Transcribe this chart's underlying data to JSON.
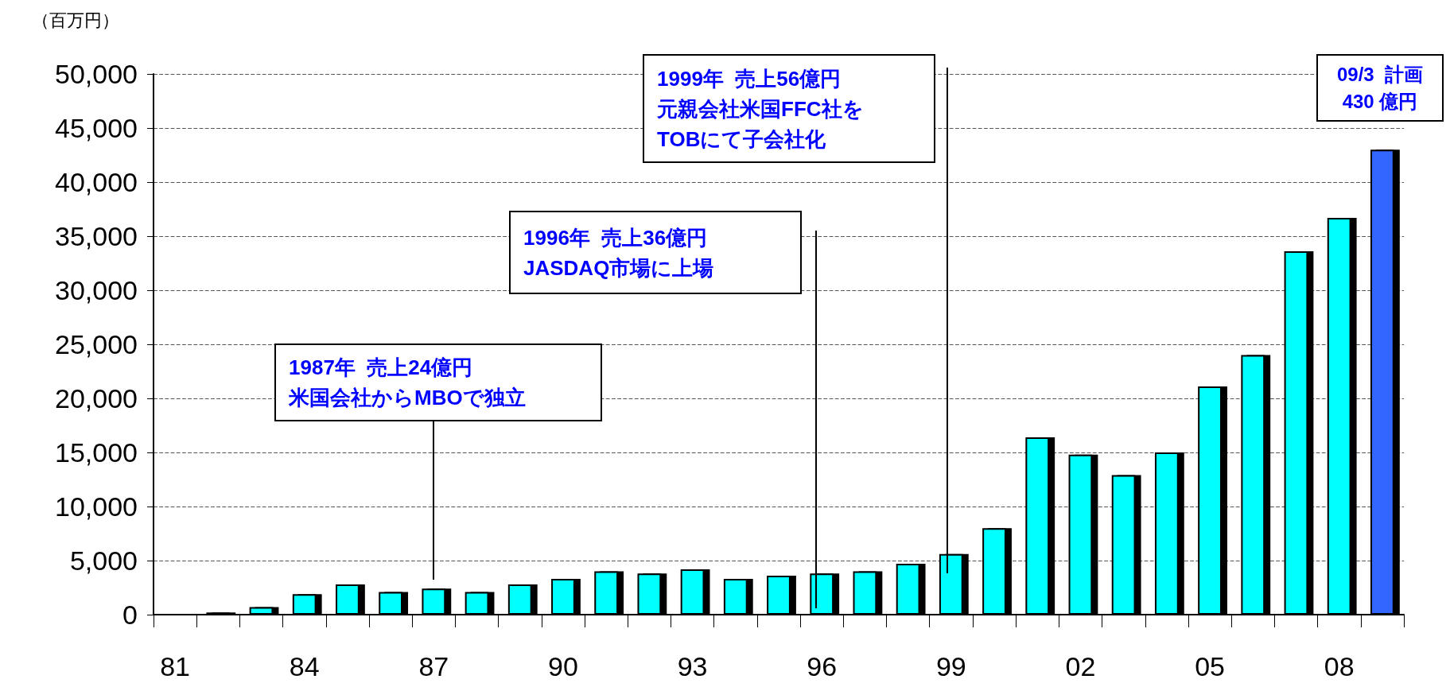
{
  "chart_data": {
    "type": "bar",
    "ylabel": "（百万円）",
    "categories": [
      "81",
      null,
      null,
      "84",
      null,
      null,
      "87",
      null,
      null,
      "90",
      null,
      null,
      "93",
      null,
      null,
      "96",
      null,
      null,
      "99",
      null,
      null,
      "02",
      null,
      null,
      "05",
      null,
      null,
      "08",
      null
    ],
    "values": [
      0,
      200,
      700,
      1900,
      2800,
      2100,
      2400,
      2100,
      2800,
      3300,
      4000,
      3800,
      4200,
      3300,
      3600,
      3800,
      4000,
      4700,
      5600,
      8000,
      16400,
      14800,
      12900,
      15000,
      21100,
      24000,
      33600,
      36700,
      43000
    ],
    "colors": [
      "#000000",
      "#00ffff",
      "#00ffff",
      "#00ffff",
      "#00ffff",
      "#00ffff",
      "#00ffff",
      "#00ffff",
      "#00ffff",
      "#00ffff",
      "#00ffff",
      "#00ffff",
      "#00ffff",
      "#00ffff",
      "#00ffff",
      "#00ffff",
      "#00ffff",
      "#00ffff",
      "#00ffff",
      "#00ffff",
      "#00ffff",
      "#00ffff",
      "#00ffff",
      "#00ffff",
      "#00ffff",
      "#00ffff",
      "#00ffff",
      "#00ffff",
      "#3366ff"
    ],
    "ylim": [
      0,
      50000
    ],
    "yticks": [
      {
        "value": 0,
        "label": "0"
      },
      {
        "value": 5000,
        "label": "5,000"
      },
      {
        "value": 10000,
        "label": "10,000"
      },
      {
        "value": 15000,
        "label": "15,000"
      },
      {
        "value": 20000,
        "label": "20,000"
      },
      {
        "value": 25000,
        "label": "25,000"
      },
      {
        "value": 30000,
        "label": "30,000"
      },
      {
        "value": 35000,
        "label": "35,000"
      },
      {
        "value": 40000,
        "label": "40,000"
      },
      {
        "value": 45000,
        "label": "45,000"
      },
      {
        "value": 50000,
        "label": "50,000"
      }
    ],
    "grid": "y",
    "annotations": [
      "1987年  売上24億円米国会社からMBOで独立",
      "1996年  売上36億円\nJASDAQ市場に上場",
      "1999年  売上56億円元親会社米国FFC社を\nTOBにて子会社化",
      "09/3  計画\n430 億円"
    ]
  }
}
